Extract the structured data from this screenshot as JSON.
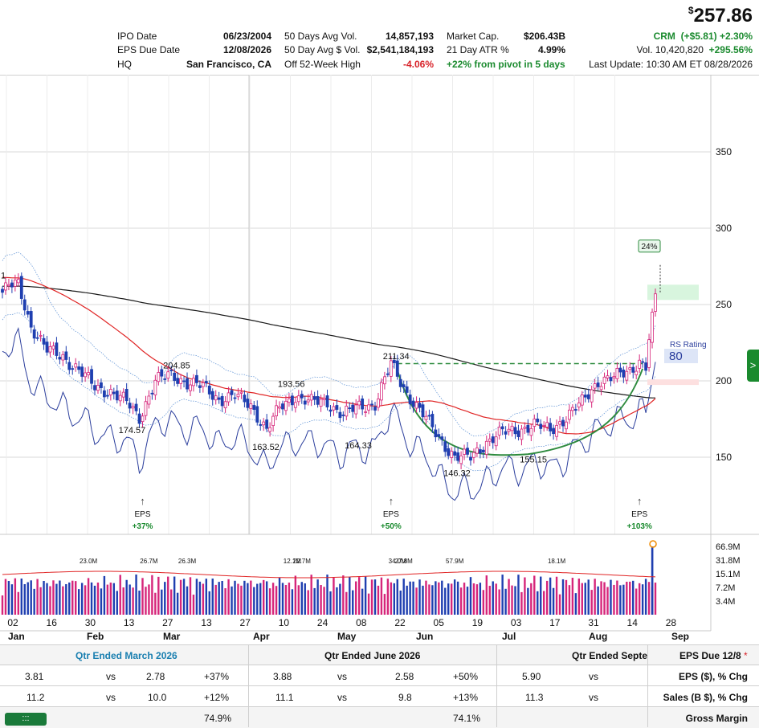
{
  "header": {
    "price_symbol": "$",
    "price": "257.86",
    "ticker": "CRM",
    "change": "(+$5.81)",
    "change_pct": "+2.30%",
    "volume": "Vol. 10,420,820",
    "volume_pct": "+295.56%",
    "last_update": "Last Update: 10:30 AM ET 08/28/2026",
    "col1": [
      {
        "label": "IPO Date",
        "value": "06/23/2004"
      },
      {
        "label": "EPS Due Date",
        "value": "12/08/2026"
      },
      {
        "label": "HQ",
        "value": "San Francisco, CA"
      }
    ],
    "col2": [
      {
        "label": "50 Days Avg Vol.",
        "value": "14,857,193"
      },
      {
        "label": "50 Day Avg $ Vol.",
        "value": "$2,541,184,193"
      },
      {
        "label": "Off 52-Week High",
        "value": "-4.06%"
      }
    ],
    "col3": [
      {
        "label": "Market Cap.",
        "value": "$206.43B"
      },
      {
        "label": "21 Day ATR %",
        "value": "4.99%"
      },
      {
        "label": "+22% from pivot in 5 days",
        "value": ""
      }
    ]
  },
  "colors": {
    "up": "#d6257a",
    "down": "#1f3fb0",
    "ma50": "#e02424",
    "ma200": "#1a1a1a",
    "band": "#6a9ad8",
    "rs": "#2a3d9c",
    "base": "#2e8b3e"
  },
  "chart_data": {
    "type": "candlestick",
    "y_axis": {
      "ticks": [
        150,
        200,
        250,
        300,
        350
      ],
      "ylim": [
        110,
        395
      ],
      "scale": "linear"
    },
    "x_axis": {
      "days": [
        "02",
        "16",
        "30",
        "13",
        "27",
        "13",
        "27",
        "10",
        "24",
        "08",
        "22",
        "05",
        "19",
        "03",
        "17",
        "31",
        "14",
        "28"
      ],
      "months": [
        "Jan",
        "Feb",
        "Mar",
        "Apr",
        "May",
        "Jun",
        "Jul",
        "Aug",
        "Sep"
      ]
    },
    "close_anchors": [
      [
        0,
        258
      ],
      [
        2,
        262
      ],
      [
        5,
        263
      ],
      [
        9,
        236
      ],
      [
        14,
        220
      ],
      [
        19,
        216
      ],
      [
        24,
        207
      ],
      [
        29,
        196
      ],
      [
        34,
        193
      ],
      [
        39,
        186
      ],
      [
        43,
        176
      ],
      [
        48,
        200
      ],
      [
        53,
        204
      ],
      [
        58,
        199
      ],
      [
        63,
        196
      ],
      [
        68,
        188
      ],
      [
        73,
        190
      ],
      [
        78,
        184
      ],
      [
        83,
        168
      ],
      [
        87,
        182
      ],
      [
        92,
        190
      ],
      [
        97,
        186
      ],
      [
        102,
        186
      ],
      [
        107,
        178
      ],
      [
        112,
        183
      ],
      [
        117,
        185
      ],
      [
        122,
        211
      ],
      [
        127,
        192
      ],
      [
        132,
        178
      ],
      [
        137,
        163
      ],
      [
        142,
        150
      ],
      [
        147,
        150
      ],
      [
        152,
        160
      ],
      [
        157,
        166
      ],
      [
        162,
        168
      ],
      [
        167,
        171
      ],
      [
        172,
        168
      ],
      [
        177,
        176
      ],
      [
        182,
        186
      ],
      [
        187,
        200
      ],
      [
        192,
        202
      ],
      [
        197,
        207
      ],
      [
        200,
        213
      ],
      [
        202,
        209
      ],
      [
        204,
        245
      ],
      [
        205,
        257
      ]
    ],
    "price_labels": [
      {
        "text": "1",
        "x": 0,
        "y": 265
      },
      {
        "text": "204.85",
        "x": 55,
        "y": 206
      },
      {
        "text": "174.57",
        "x": 41,
        "y": 172
      },
      {
        "text": "193.56",
        "x": 91,
        "y": 194
      },
      {
        "text": "163.52",
        "x": 83,
        "y": 161
      },
      {
        "text": "164.33",
        "x": 112,
        "y": 162
      },
      {
        "text": "211.34",
        "x": 124,
        "y": 212
      },
      {
        "text": "146.32",
        "x": 143,
        "y": 144
      },
      {
        "text": "155.15",
        "x": 167,
        "y": 153
      }
    ],
    "eps_markers": [
      {
        "label": "EPS",
        "change": "+37%",
        "x": 44
      },
      {
        "label": "EPS",
        "change": "+50%",
        "x": 122
      },
      {
        "label": "EPS",
        "change": "+103%",
        "x": 200
      }
    ],
    "pivot_level": 211.34,
    "move_badge": "24%",
    "rs_rating_label": "RS Rating",
    "rs_rating": "80",
    "volume": {
      "ticks": [
        "66.9M",
        "31.8M",
        "15.1M",
        "7.2M",
        "3.4M"
      ],
      "labels": [
        {
          "text": "23.0M",
          "x": 27
        },
        {
          "text": "26.7M",
          "x": 46
        },
        {
          "text": "26.3M",
          "x": 58
        },
        {
          "text": "22.7M",
          "x": 94
        },
        {
          "text": "12.1M",
          "x": 91
        },
        {
          "text": "34.0M",
          "x": 124
        },
        {
          "text": "27.8M",
          "x": 126
        },
        {
          "text": "57.9M",
          "x": 142
        },
        {
          "text": "18.1M",
          "x": 174
        }
      ]
    }
  },
  "table": {
    "header": [
      "Qtr Ended March 2026",
      "Qtr Ended June 2026",
      "Qtr Ended Septem",
      "EPS Due 12/8",
      "*"
    ],
    "eps_row": {
      "q1": [
        "3.81",
        "vs",
        "2.78",
        "+37%"
      ],
      "q2": [
        "3.88",
        "vs",
        "2.58",
        "+50%"
      ],
      "q3": [
        "5.90",
        "vs"
      ],
      "label": "EPS ($), % Chg"
    },
    "sales_row": {
      "q1": [
        "11.2",
        "vs",
        "10.0",
        "+12%"
      ],
      "q2": [
        "11.1",
        "vs",
        "9.8",
        "+13%"
      ],
      "q3": [
        "11.3",
        "vs"
      ],
      "label": "Sales (B $), % Chg"
    },
    "margin_row": {
      "q1": "74.9%",
      "q2": "74.1%",
      "label": "Gross Margin",
      "button": ":::"
    }
  },
  "side_tab": ">"
}
